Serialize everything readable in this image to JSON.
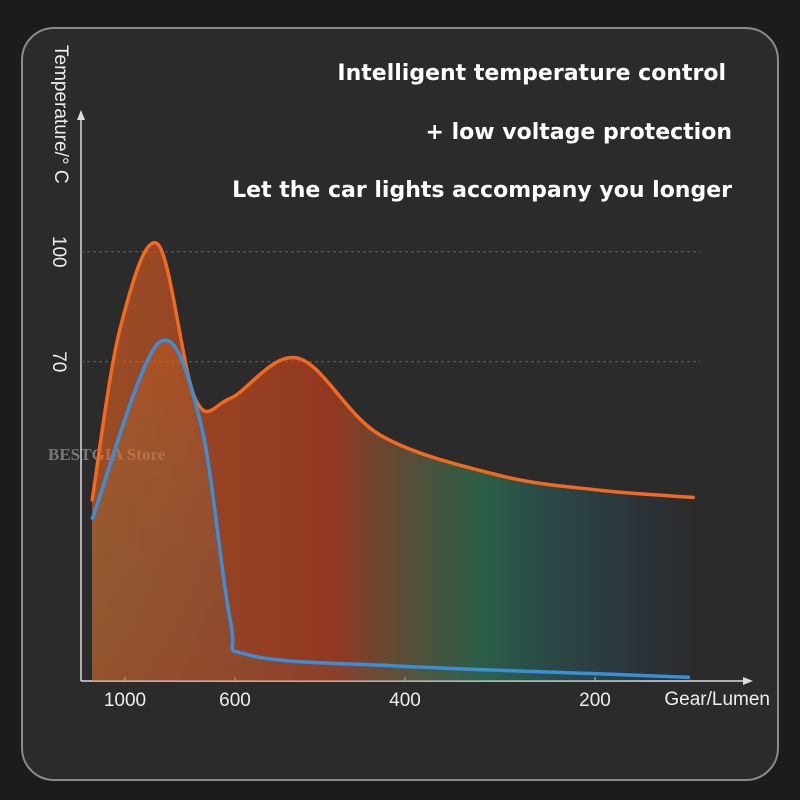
{
  "chart_data": {
    "type": "line",
    "title_lines": [
      "Intelligent temperature control",
      "+ low voltage protection",
      "Let the car lights accompany you longer"
    ],
    "y_label": "Temperature/° C",
    "x_label": "Gear/Lumen",
    "watermark": "BESTGIA Store",
    "xlim": [
      1160,
      40
    ],
    "xticks": [
      1000,
      600,
      400,
      200
    ],
    "ylim": [
      -17,
      137
    ],
    "yticks": [
      100,
      70
    ],
    "grid": true,
    "series": [
      {
        "color": "#f26a1f",
        "x": [
          1120,
          1018,
          880,
          745,
          618,
          526,
          429,
          300,
          195,
          95
        ],
        "values": [
          32,
          79,
          102,
          60,
          60,
          71,
          50,
          39,
          35,
          33
        ]
      },
      {
        "color": "#3a8fd8",
        "x": [
          1120,
          880,
          727,
          618,
          582,
          400,
          200,
          100
        ],
        "values": [
          27,
          75,
          54,
          0,
          -10,
          -13,
          -15,
          -16
        ]
      }
    ]
  }
}
